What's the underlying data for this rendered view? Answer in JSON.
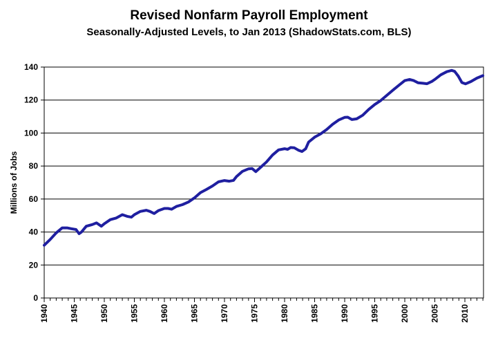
{
  "chart_data": {
    "type": "line",
    "title": "Revised Nonfarm Payroll Employment",
    "subtitle": "Seasonally-Adjusted Levels, to Jan 2013 (ShadowStats.com, BLS)",
    "xlabel": "",
    "ylabel": "Millions of Jobs",
    "xlim": [
      1940,
      2013.1
    ],
    "ylim": [
      0,
      140
    ],
    "yticks": [
      0,
      20,
      40,
      60,
      80,
      100,
      120,
      140
    ],
    "xticks": [
      1940,
      1945,
      1950,
      1955,
      1960,
      1965,
      1970,
      1975,
      1980,
      1985,
      1990,
      1995,
      2000,
      2005,
      2010
    ],
    "grid": "horizontal",
    "legend": "none",
    "line_color": "#1f1fa0",
    "series": [
      {
        "x": [
          1940,
          1941,
          1942,
          1943,
          1943.8,
          1944.5,
          1945.3,
          1945.8,
          1946.2,
          1947,
          1948,
          1948.7,
          1949.5,
          1950,
          1951,
          1952,
          1953,
          1953.8,
          1954.5,
          1955,
          1956,
          1957,
          1957.6,
          1958.3,
          1959,
          1960,
          1960.6,
          1961.2,
          1962,
          1963,
          1964,
          1965,
          1966,
          1967,
          1968,
          1969,
          1970,
          1970.8,
          1971.5,
          1972,
          1973,
          1974,
          1974.6,
          1975.2,
          1976,
          1977,
          1978,
          1979,
          1980,
          1980.5,
          1981,
          1981.6,
          1982.3,
          1982.9,
          1983.5,
          1984,
          1985,
          1986,
          1987,
          1988,
          1989,
          1990,
          1990.5,
          1991.2,
          1992,
          1993,
          1994,
          1995,
          1996,
          1997,
          1998,
          1999,
          2000,
          2000.8,
          2001.5,
          2002.2,
          2003,
          2003.7,
          2004.5,
          2005,
          2006,
          2007,
          2007.8,
          2008.3,
          2008.9,
          2009.5,
          2010.1,
          2011,
          2012,
          2013
        ],
        "values": [
          32,
          35.5,
          39.5,
          42.5,
          42.5,
          42,
          41.5,
          39,
          40,
          43.5,
          44.5,
          45.5,
          43.5,
          45,
          47.5,
          48.5,
          50.5,
          49.5,
          49,
          50.5,
          52.5,
          53.2,
          52.5,
          51.2,
          53,
          54.3,
          54.3,
          53.8,
          55.5,
          56.6,
          58.2,
          60.7,
          63.9,
          65.8,
          67.9,
          70.4,
          71.2,
          70.8,
          71.3,
          73.6,
          76.8,
          78.3,
          78.5,
          76.6,
          79.2,
          82.5,
          86.7,
          89.8,
          90.5,
          90.1,
          91.2,
          91.1,
          89.6,
          88.8,
          90.4,
          94.5,
          97.5,
          99.5,
          102.1,
          105.3,
          107.9,
          109.5,
          109.6,
          108.2,
          108.6,
          110.8,
          114.3,
          117.3,
          119.7,
          122.8,
          125.9,
          128.9,
          131.8,
          132.5,
          131.8,
          130.5,
          130.2,
          129.9,
          131.3,
          132.5,
          135.3,
          137.2,
          138,
          137.4,
          134.5,
          130.6,
          129.8,
          131.2,
          133.3,
          134.8
        ]
      }
    ]
  }
}
